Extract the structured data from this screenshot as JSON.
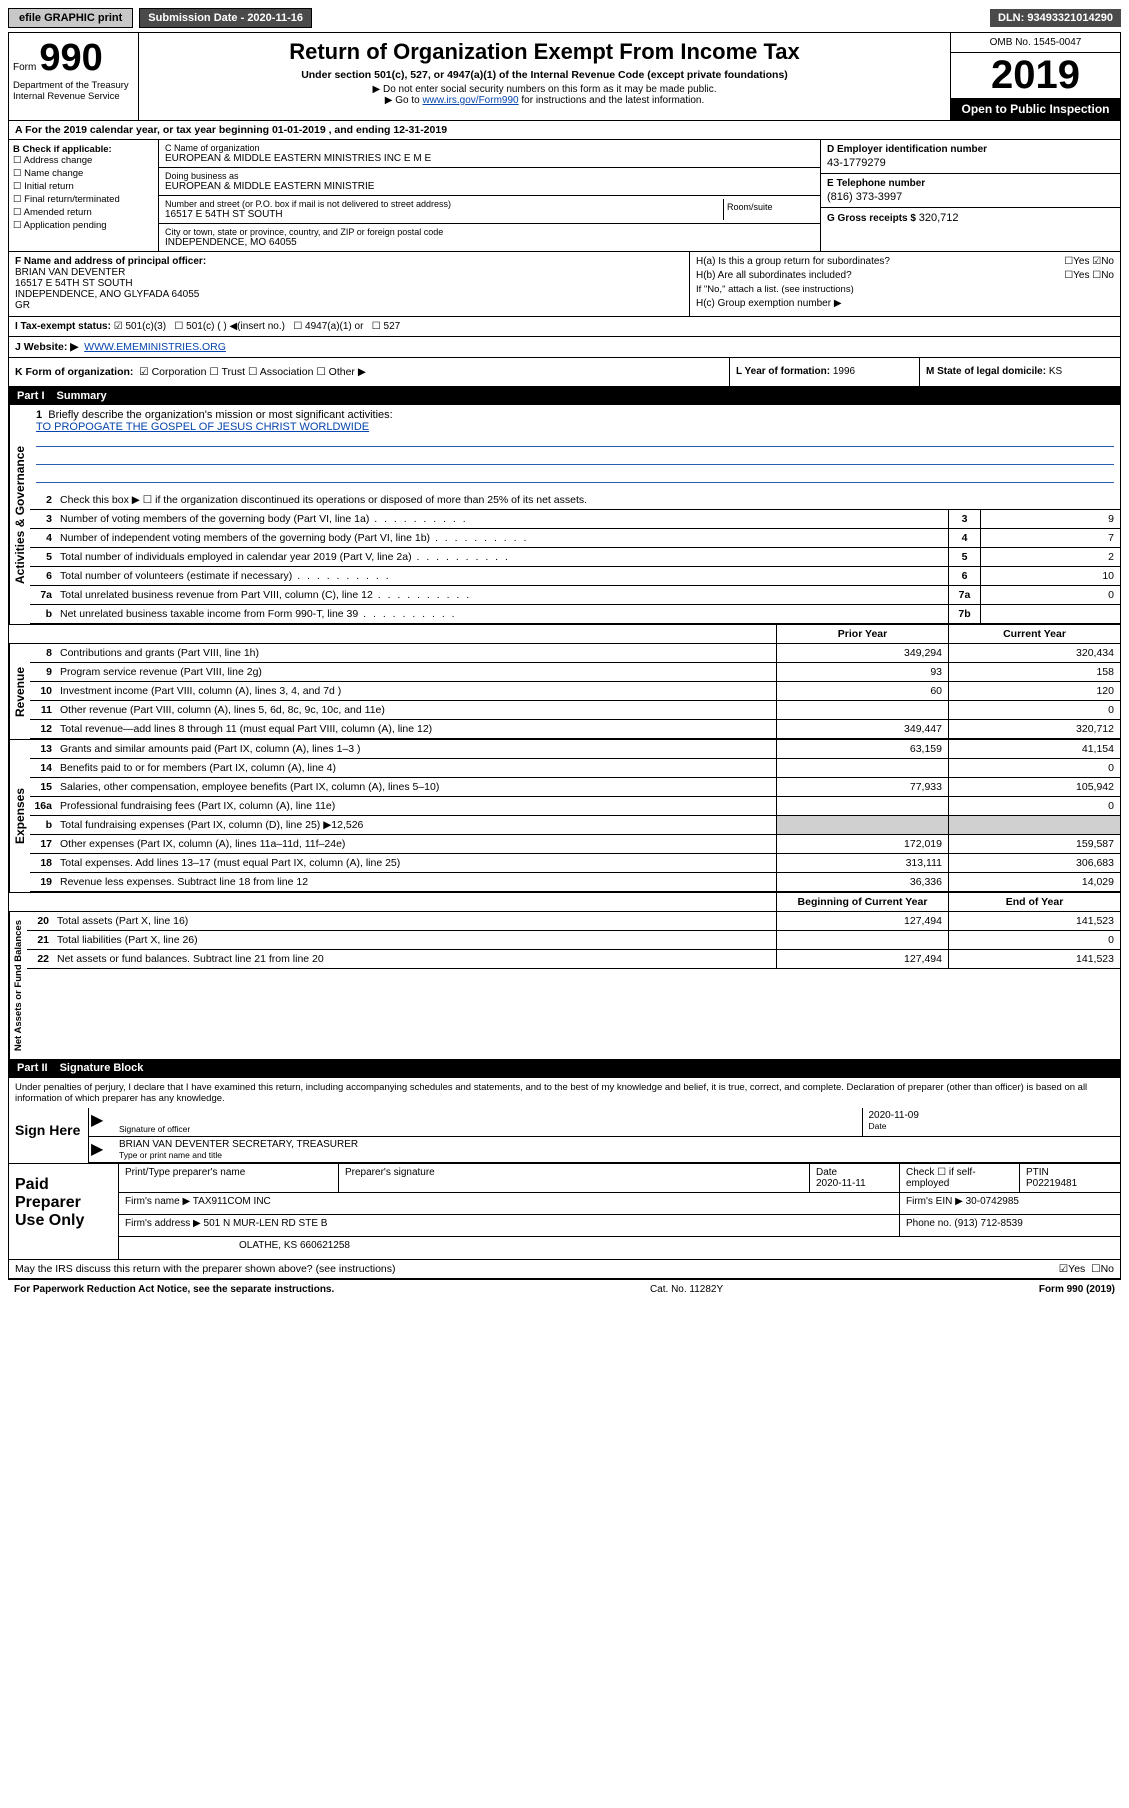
{
  "topbar": {
    "efile": "efile GRAPHIC print",
    "submission_label": "Submission Date - 2020-11-16",
    "dln": "DLN: 93493321014290"
  },
  "header": {
    "form_label": "Form",
    "form_number": "990",
    "title": "Return of Organization Exempt From Income Tax",
    "sub1": "Under section 501(c), 527, or 4947(a)(1) of the Internal Revenue Code (except private foundations)",
    "sub2": "▶ Do not enter social security numbers on this form as it may be made public.",
    "sub3_pre": "▶ Go to ",
    "sub3_link": "www.irs.gov/Form990",
    "sub3_post": " for instructions and the latest information.",
    "dept1": "Department of the Treasury",
    "dept2": "Internal Revenue Service",
    "omb": "OMB No. 1545-0047",
    "year": "2019",
    "open": "Open to Public Inspection"
  },
  "period": "A For the 2019 calendar year, or tax year beginning 01-01-2019    , and ending 12-31-2019",
  "B": {
    "label": "B Check if applicable:",
    "items": [
      "☐ Address change",
      "☐ Name change",
      "☐ Initial return",
      "☐ Final return/terminated",
      "☐ Amended return",
      "☐ Application pending"
    ]
  },
  "C": {
    "name_lbl": "C Name of organization",
    "name": "EUROPEAN & MIDDLE EASTERN MINISTRIES INC E M E",
    "dba_lbl": "Doing business as",
    "dba": "EUROPEAN & MIDDLE EASTERN MINISTRIE",
    "addr_lbl": "Number and street (or P.O. box if mail is not delivered to street address)",
    "addr": "16517 E 54TH ST SOUTH",
    "room_lbl": "Room/suite",
    "city_lbl": "City or town, state or province, country, and ZIP or foreign postal code",
    "city": "INDEPENDENCE, MO  64055"
  },
  "D": {
    "lbl": "D Employer identification number",
    "val": "43-1779279"
  },
  "E": {
    "lbl": "E Telephone number",
    "val": "(816) 373-3997"
  },
  "G": {
    "lbl": "G Gross receipts $",
    "val": "320,712"
  },
  "F": {
    "lbl": "F  Name and address of principal officer:",
    "name": "BRIAN VAN DEVENTER",
    "addr1": "16517 E 54TH ST SOUTH",
    "addr2": "INDEPENDENCE, ANO GLYFADA  64055",
    "addr3": "GR"
  },
  "H": {
    "a": "H(a)  Is this a group return for subordinates?",
    "a_yes": "☐Yes",
    "a_no": "☑No",
    "b": "H(b)  Are all subordinates included?",
    "b_yes": "☐Yes",
    "b_no": "☐No",
    "b_note": "If \"No,\" attach a list. (see instructions)",
    "c": "H(c)  Group exemption number ▶"
  },
  "I": {
    "lbl": "I   Tax-exempt status:",
    "opt1": "☑ 501(c)(3)",
    "opt2": "☐  501(c) (  ) ◀(insert no.)",
    "opt3": "☐ 4947(a)(1) or",
    "opt4": "☐ 527"
  },
  "J": {
    "lbl": "J   Website: ▶",
    "val": "WWW.EMEMINISTRIES.ORG"
  },
  "K": {
    "lbl": "K Form of organization:",
    "opts": "☑ Corporation  ☐ Trust  ☐ Association  ☐ Other ▶"
  },
  "L": {
    "lbl": "L Year of formation:",
    "val": "1996"
  },
  "M": {
    "lbl": "M State of legal domicile:",
    "val": "KS"
  },
  "part1": {
    "num": "Part I",
    "title": "Summary"
  },
  "briefly": {
    "n": "1",
    "t": "Briefly describe the organization's mission or most significant activities:",
    "mission": "TO PROPOGATE THE GOSPEL OF JESUS CHRIST WORLDWIDE"
  },
  "gov_lines": [
    {
      "n": "2",
      "t": "Check this box ▶ ☐  if the organization discontinued its operations or disposed of more than 25% of its net assets."
    },
    {
      "n": "3",
      "t": "Number of voting members of the governing body (Part VI, line 1a)",
      "bx": "3",
      "v": "9"
    },
    {
      "n": "4",
      "t": "Number of independent voting members of the governing body (Part VI, line 1b)",
      "bx": "4",
      "v": "7"
    },
    {
      "n": "5",
      "t": "Total number of individuals employed in calendar year 2019 (Part V, line 2a)",
      "bx": "5",
      "v": "2"
    },
    {
      "n": "6",
      "t": "Total number of volunteers (estimate if necessary)",
      "bx": "6",
      "v": "10"
    },
    {
      "n": "7a",
      "t": "Total unrelated business revenue from Part VIII, column (C), line 12",
      "bx": "7a",
      "v": "0"
    },
    {
      "n": "b",
      "t": "Net unrelated business taxable income from Form 990-T, line 39",
      "bx": "7b",
      "v": ""
    }
  ],
  "col_hdr": {
    "prior": "Prior Year",
    "current": "Current Year"
  },
  "rev_lines": [
    {
      "n": "8",
      "t": "Contributions and grants (Part VIII, line 1h)",
      "p": "349,294",
      "c": "320,434"
    },
    {
      "n": "9",
      "t": "Program service revenue (Part VIII, line 2g)",
      "p": "93",
      "c": "158"
    },
    {
      "n": "10",
      "t": "Investment income (Part VIII, column (A), lines 3, 4, and 7d )",
      "p": "60",
      "c": "120"
    },
    {
      "n": "11",
      "t": "Other revenue (Part VIII, column (A), lines 5, 6d, 8c, 9c, 10c, and 11e)",
      "p": "",
      "c": "0"
    },
    {
      "n": "12",
      "t": "Total revenue—add lines 8 through 11 (must equal Part VIII, column (A), line 12)",
      "p": "349,447",
      "c": "320,712"
    }
  ],
  "exp_lines": [
    {
      "n": "13",
      "t": "Grants and similar amounts paid (Part IX, column (A), lines 1–3 )",
      "p": "63,159",
      "c": "41,154"
    },
    {
      "n": "14",
      "t": "Benefits paid to or for members (Part IX, column (A), line 4)",
      "p": "",
      "c": "0"
    },
    {
      "n": "15",
      "t": "Salaries, other compensation, employee benefits (Part IX, column (A), lines 5–10)",
      "p": "77,933",
      "c": "105,942"
    },
    {
      "n": "16a",
      "t": "Professional fundraising fees (Part IX, column (A), line 11e)",
      "p": "",
      "c": "0"
    },
    {
      "n": "b",
      "t": "Total fundraising expenses (Part IX, column (D), line 25) ▶12,526",
      "p": "",
      "c": "",
      "shade": true
    },
    {
      "n": "17",
      "t": "Other expenses (Part IX, column (A), lines 11a–11d, 11f–24e)",
      "p": "172,019",
      "c": "159,587"
    },
    {
      "n": "18",
      "t": "Total expenses. Add lines 13–17 (must equal Part IX, column (A), line 25)",
      "p": "313,111",
      "c": "306,683"
    },
    {
      "n": "19",
      "t": "Revenue less expenses. Subtract line 18 from line 12",
      "p": "36,336",
      "c": "14,029"
    }
  ],
  "net_hdr": {
    "beg": "Beginning of Current Year",
    "end": "End of Year"
  },
  "net_lines": [
    {
      "n": "20",
      "t": "Total assets (Part X, line 16)",
      "p": "127,494",
      "c": "141,523"
    },
    {
      "n": "21",
      "t": "Total liabilities (Part X, line 26)",
      "p": "",
      "c": "0"
    },
    {
      "n": "22",
      "t": "Net assets or fund balances. Subtract line 21 from line 20",
      "p": "127,494",
      "c": "141,523"
    }
  ],
  "part2": {
    "num": "Part II",
    "title": "Signature Block"
  },
  "sig": {
    "declare": "Under penalties of perjury, I declare that I have examined this return, including accompanying schedules and statements, and to the best of my knowledge and belief, it is true, correct, and complete. Declaration of preparer (other than officer) is based on all information of which preparer has any knowledge.",
    "sign_here": "Sign Here",
    "sig_of_officer": "Signature of officer",
    "date_lbl": "Date",
    "date": "2020-11-09",
    "typed": "BRIAN VAN DEVENTER  SECRETARY, TREASURER",
    "typed_lbl": "Type or print name and title"
  },
  "prep": {
    "lbl": "Paid Preparer Use Only",
    "h1": "Print/Type preparer's name",
    "h2": "Preparer's signature",
    "h3": "Date",
    "date": "2020-11-11",
    "h4_pre": "Check ☐ if self-employed",
    "h5": "PTIN",
    "ptin": "P02219481",
    "firm_name_lbl": "Firm's name    ▶",
    "firm_name": "TAX911COM INC",
    "firm_ein_lbl": "Firm's EIN ▶",
    "firm_ein": "30-0742985",
    "firm_addr_lbl": "Firm's address ▶",
    "firm_addr1": "501 N MUR-LEN RD STE B",
    "firm_addr2": "OLATHE, KS  660621258",
    "phone_lbl": "Phone no.",
    "phone": "(913) 712-8539"
  },
  "discuss": {
    "t": "May the IRS discuss this return with the preparer shown above? (see instructions)",
    "yes": "☑Yes",
    "no": "☐No"
  },
  "bottom": {
    "l": "For Paperwork Reduction Act Notice, see the separate instructions.",
    "m": "Cat. No. 11282Y",
    "r": "Form 990 (2019)"
  },
  "side_labels": {
    "gov": "Activities & Governance",
    "rev": "Revenue",
    "exp": "Expenses",
    "net": "Net Assets or Fund Balances"
  }
}
